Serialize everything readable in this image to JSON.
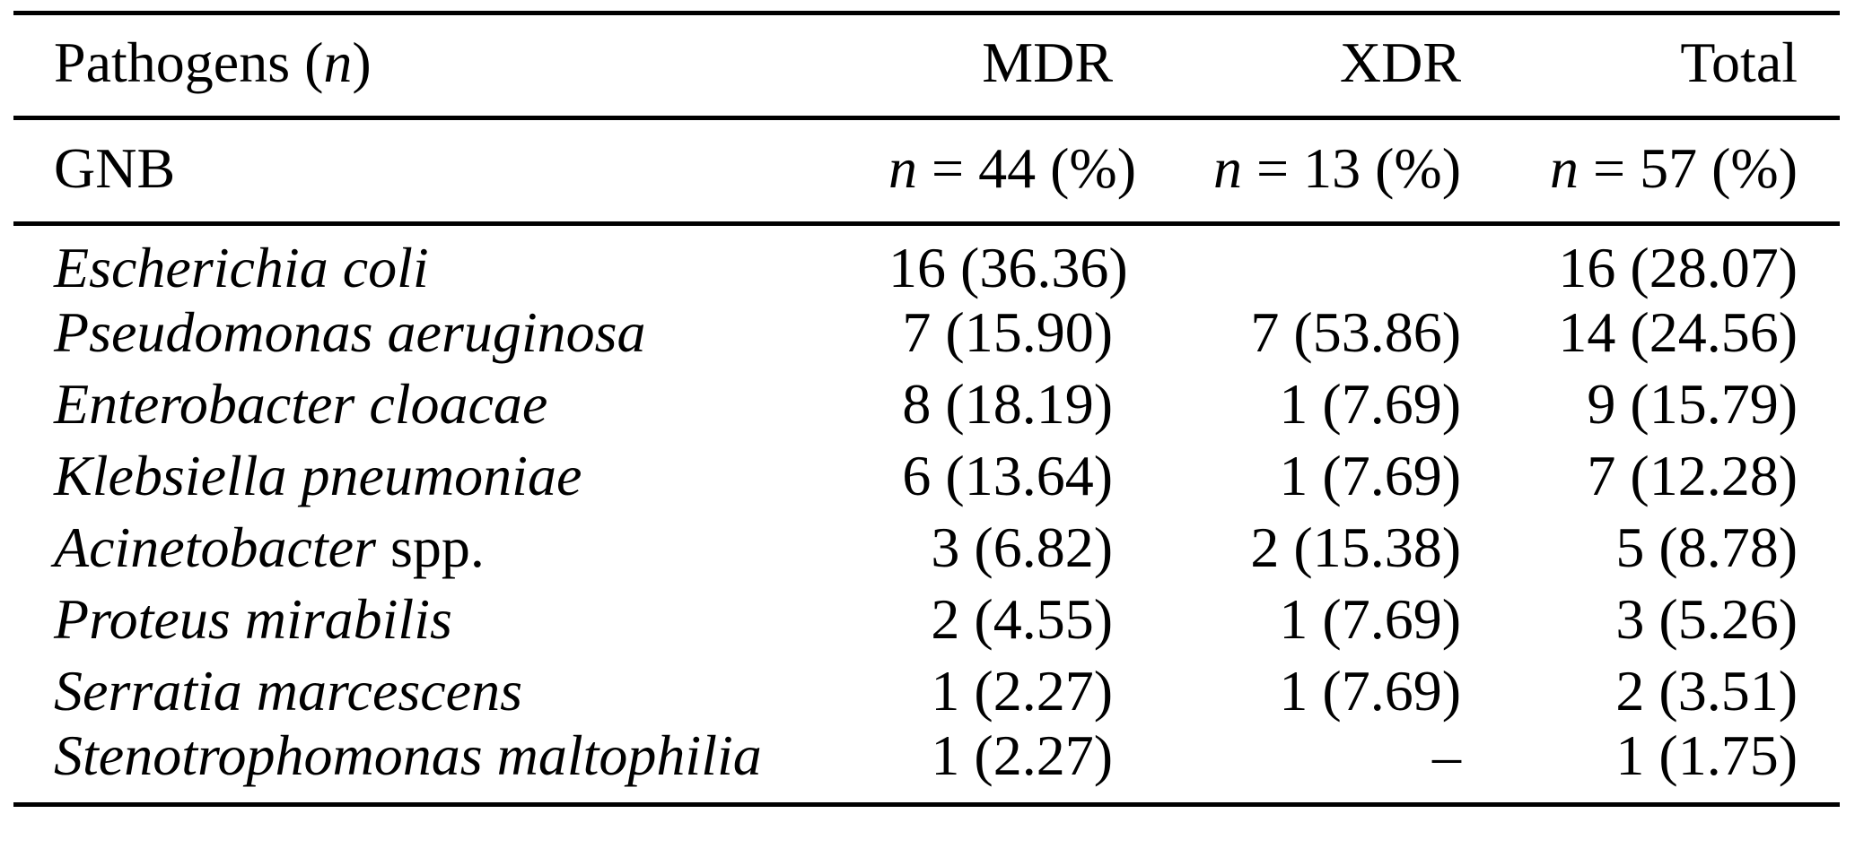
{
  "table": {
    "colors": {
      "text": "#000000",
      "background": "#ffffff",
      "rule": "#000000"
    },
    "header": {
      "col1_pre": "Pathogens (",
      "col1_n": "n",
      "col1_post": ")",
      "col2": "MDR",
      "col3": "XDR",
      "col4": "Total"
    },
    "subheader": {
      "col1": "GNB",
      "col2_n": "n",
      "col2_rest": " = 44 (%)",
      "col3_n": "n",
      "col3_rest": " = 13 (%)",
      "col4_n": "n",
      "col4_rest": " = 57 (%)"
    },
    "rows": [
      {
        "name": {
          "italic": "Escherichia coli",
          "roman": ""
        },
        "mdr": "16 (36.36)",
        "xdr": "",
        "total": "16 (28.07)"
      },
      {
        "name": {
          "italic": "Pseudomonas aeruginosa",
          "roman": ""
        },
        "mdr": "7 (15.90)",
        "xdr": "7 (53.86)",
        "total": "14 (24.56)"
      },
      {
        "name": {
          "italic": "Enterobacter cloacae",
          "roman": ""
        },
        "mdr": "8 (18.19)",
        "xdr": "1 (7.69)",
        "total": "9 (15.79)"
      },
      {
        "name": {
          "italic": "Klebsiella pneumoniae",
          "roman": ""
        },
        "mdr": "6 (13.64)",
        "xdr": "1 (7.69)",
        "total": "7 (12.28)"
      },
      {
        "name": {
          "italic": "Acinetobacter",
          "roman": " spp."
        },
        "mdr": "3 (6.82)",
        "xdr": "2 (15.38)",
        "total": "5 (8.78)"
      },
      {
        "name": {
          "italic": "Proteus mirabilis",
          "roman": ""
        },
        "mdr": "2 (4.55)",
        "xdr": "1 (7.69)",
        "total": "3 (5.26)"
      },
      {
        "name": {
          "italic": "Serratia marcescens",
          "roman": ""
        },
        "mdr": "1 (2.27)",
        "xdr": "1 (7.69)",
        "total": "2 (3.51)"
      },
      {
        "name": {
          "italic": "Stenotrophomonas maltophilia",
          "roman": ""
        },
        "mdr": "1 (2.27)",
        "xdr": "–",
        "total": "1 (1.75)"
      }
    ]
  }
}
